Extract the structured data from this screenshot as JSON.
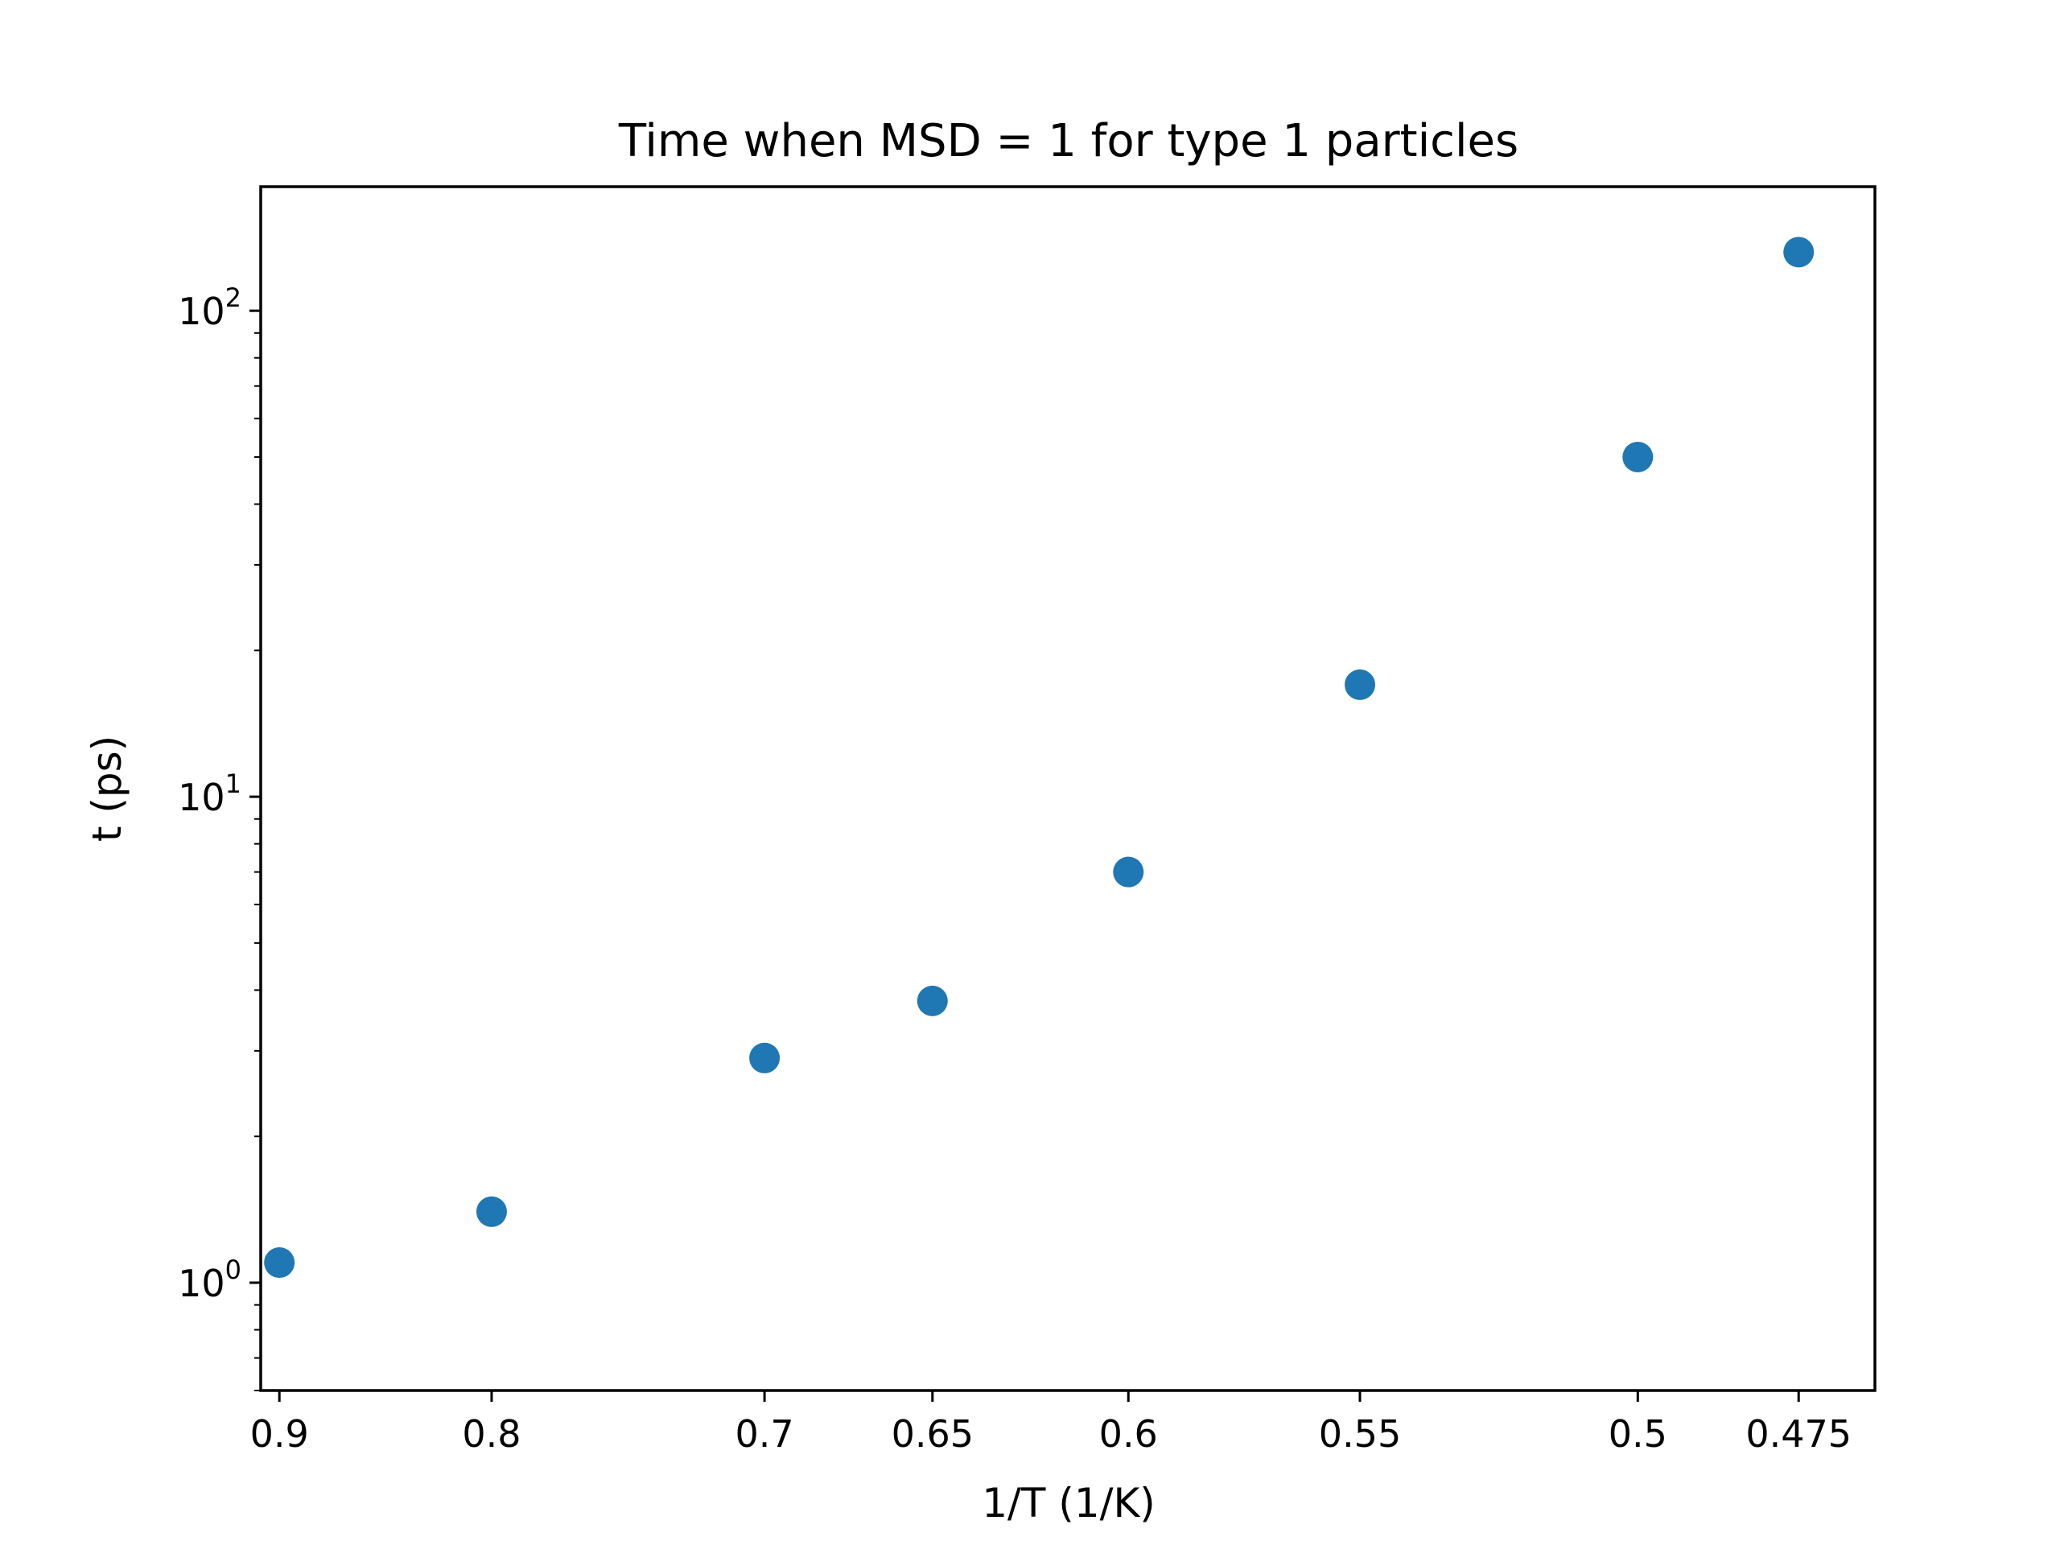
{
  "chart_data": {
    "type": "scatter",
    "title": "Time when MSD = 1 for type 1 particles",
    "xlabel": "1/T (1/K)",
    "ylabel": "t (ps)",
    "x_scale": "reciprocal",
    "y_scale": "log",
    "xlim": [
      0.91,
      0.464
    ],
    "ylim": [
      0.6,
      180
    ],
    "grid": false,
    "color": "#1f77b4",
    "x_ticks": [
      {
        "value": 0.9,
        "label": "0.9"
      },
      {
        "value": 0.8,
        "label": "0.8"
      },
      {
        "value": 0.7,
        "label": "0.7"
      },
      {
        "value": 0.65,
        "label": "0.65"
      },
      {
        "value": 0.6,
        "label": "0.6"
      },
      {
        "value": 0.55,
        "label": "0.55"
      },
      {
        "value": 0.5,
        "label": "0.5"
      },
      {
        "value": 0.475,
        "label": "0.475"
      }
    ],
    "y_ticks": [
      {
        "value": 1,
        "base": "10",
        "exp": "0"
      },
      {
        "value": 10,
        "base": "10",
        "exp": "1"
      },
      {
        "value": 100,
        "base": "10",
        "exp": "2"
      }
    ],
    "points": [
      {
        "x": 0.9,
        "y": 1.1
      },
      {
        "x": 0.8,
        "y": 1.4
      },
      {
        "x": 0.7,
        "y": 2.9
      },
      {
        "x": 0.65,
        "y": 3.8
      },
      {
        "x": 0.6,
        "y": 7.0
      },
      {
        "x": 0.55,
        "y": 17.0
      },
      {
        "x": 0.5,
        "y": 50.0
      },
      {
        "x": 0.475,
        "y": 132.0
      }
    ]
  }
}
